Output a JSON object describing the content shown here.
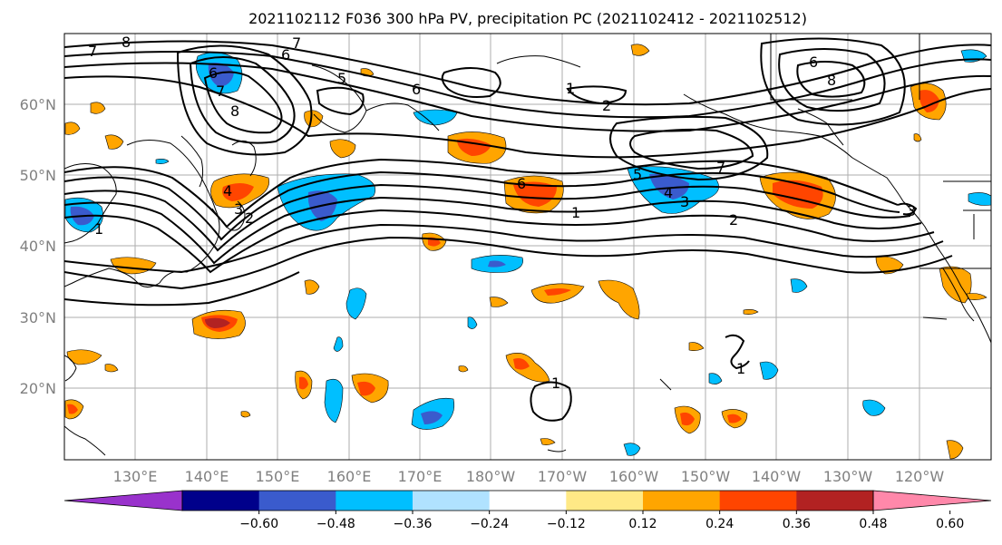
{
  "title": "2021102112 F036 300 hPa PV, precipitation PC (2021102412 - 2021102512)",
  "map": {
    "lat_ticks": [
      "60°N",
      "50°N",
      "40°N",
      "30°N",
      "20°N"
    ],
    "lon_ticks": [
      "130°E",
      "140°E",
      "150°E",
      "160°E",
      "170°E",
      "180°W",
      "170°W",
      "160°W",
      "150°W",
      "140°W",
      "130°W",
      "120°W"
    ],
    "contour_labels": [
      "7",
      "6",
      "5",
      "6",
      "7",
      "8",
      "6",
      "1",
      "2",
      "6",
      "8",
      "7",
      "8",
      "4",
      "3",
      "2",
      "1",
      "6",
      "5",
      "4",
      "3",
      "2",
      "1",
      "7",
      "1",
      "1",
      "3"
    ]
  },
  "colorbar": {
    "tick_labels": [
      "−0.60",
      "−0.48",
      "−0.36",
      "−0.24",
      "−0.12",
      "0.12",
      "0.24",
      "0.36",
      "0.48",
      "0.60"
    ],
    "colors": [
      "#9932CC",
      "#00008B",
      "#3A5BCD",
      "#00BFFF",
      "#B0E2FF",
      "#FFFFFF",
      "#FFE986",
      "#FFA500",
      "#FF4500",
      "#B22222",
      "#FF88AA"
    ]
  }
}
